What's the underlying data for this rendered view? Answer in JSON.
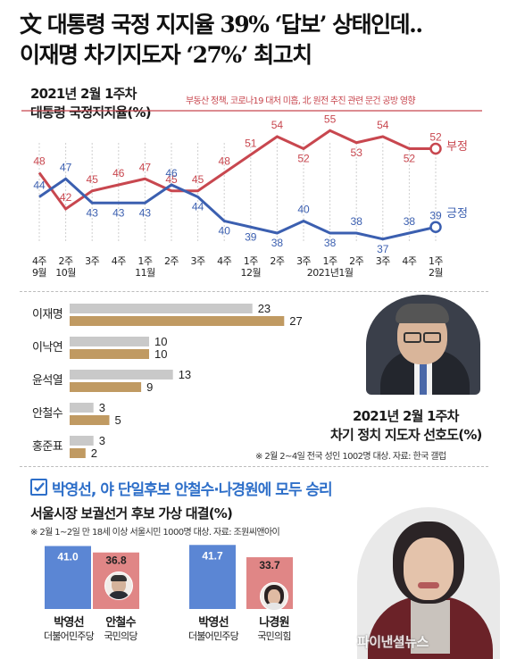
{
  "headline": {
    "line1": "文 대통령 국정 지지율 39% ‘답보’ 상태인데..",
    "line2": "이재명 차기지도자 ‘27%’ 최고치"
  },
  "approval": {
    "date_label": "2021년 2월 1주차",
    "title": "대통령 국정지지율(%)",
    "annotation": "부동산 정책, 코로나19 대처 미흡, 北 원전 추진 관련 문건 공방 영향",
    "negative_label": "부정",
    "positive_label": "긍정"
  },
  "candidates": {
    "date_label": "2021년 2월 1주차",
    "title": "차기 정치 지도자 선호도(%)",
    "source": "※ 2월 2~4일 전국 성인 1002명 대상. 자료: 한국 갤럽"
  },
  "seoul": {
    "banner": "박영선, 야 단일후보 안철수·나경원에 모두 승리",
    "title": "서울시장 보궐선거 후보 가상 대결(%)",
    "source": "※ 2월 1~2일 만 18세 이상 서울시민 1000명 대상. 자료: 조원씨앤아이",
    "watermark": "파이낸셜뉴스"
  },
  "colors": {
    "negative": "#c8474f",
    "positive": "#3b5fb0",
    "bar_prev": "#c9c9c9",
    "bar_curr": "#c09a62",
    "blue_party": "#5b86d4",
    "red_party": "#e08686",
    "banner_icon": "#2e6fc9"
  },
  "chart_data": [
    {
      "type": "line",
      "title": "대통령 국정지지율(%)",
      "categories": [
        "4주\n9월",
        "2주\n10월",
        "3주",
        "4주",
        "1주\n11월",
        "2주",
        "3주",
        "4주",
        "1주\n12월",
        "2주",
        "3주",
        "1주\n2021년1월",
        "2주",
        "3주",
        "4주",
        "1주\n2월"
      ],
      "series": [
        {
          "name": "부정",
          "values": [
            48,
            42,
            45,
            46,
            47,
            45,
            45,
            48,
            51,
            54,
            52,
            55,
            53,
            54,
            52,
            52
          ]
        },
        {
          "name": "긍정",
          "values": [
            44,
            47,
            43,
            43,
            43,
            46,
            44,
            40,
            39,
            38,
            40,
            38,
            38,
            37,
            38,
            39
          ]
        }
      ],
      "ylim": [
        34,
        58
      ]
    },
    {
      "type": "bar",
      "title": "차기 정치 지도자 선호도(%)",
      "categories": [
        "이재명",
        "이낙연",
        "윤석열",
        "안철수",
        "홍준표"
      ],
      "series": [
        {
          "name": "",
          "values": [
            23,
            10,
            13,
            3,
            3
          ]
        },
        {
          "name": "",
          "values": [
            27,
            10,
            9,
            5,
            2
          ]
        }
      ]
    },
    {
      "type": "bar",
      "title": "서울시장 보궐선거 후보 가상 대결(%)",
      "matchups": [
        {
          "a": {
            "name": "박영선",
            "party": "더불어민주당",
            "value": 41.0,
            "value_text": "41.0"
          },
          "b": {
            "name": "안철수",
            "party": "국민의당",
            "value": 36.8,
            "value_text": "36.8"
          }
        },
        {
          "a": {
            "name": "박영선",
            "party": "더불어민주당",
            "value": 41.7,
            "value_text": "41.7"
          },
          "b": {
            "name": "나경원",
            "party": "국민의힘",
            "value": 33.7,
            "value_text": "33.7"
          }
        }
      ]
    }
  ]
}
